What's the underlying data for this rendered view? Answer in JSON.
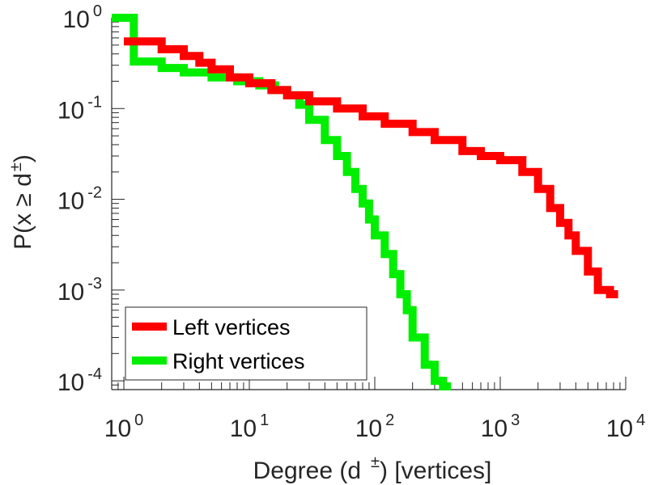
{
  "chart_data": {
    "type": "line",
    "subtype": "step-ccdf",
    "title": "",
    "xlabel": {
      "main": "Degree (d",
      "sup": "±",
      "rest": ") [vertices]"
    },
    "ylabel": {
      "main": "P(x ≥ d",
      "sup": "±",
      "rest": ")"
    },
    "xscale": "log",
    "yscale": "log",
    "xlim": [
      0.8,
      10000
    ],
    "ylim": [
      8e-05,
      1
    ],
    "x_ticks": [
      {
        "base": "10",
        "exp": "0",
        "value": 1
      },
      {
        "base": "10",
        "exp": "1",
        "value": 10
      },
      {
        "base": "10",
        "exp": "2",
        "value": 100
      },
      {
        "base": "10",
        "exp": "3",
        "value": 1000
      },
      {
        "base": "10",
        "exp": "4",
        "value": 10000
      }
    ],
    "y_ticks": [
      {
        "base": "10",
        "exp": "0",
        "value": 1
      },
      {
        "base": "10",
        "exp": "-1",
        "value": 0.1
      },
      {
        "base": "10",
        "exp": "-2",
        "value": 0.01
      },
      {
        "base": "10",
        "exp": "-3",
        "value": 0.001
      },
      {
        "base": "10",
        "exp": "-4",
        "value": 0.0001
      }
    ],
    "legend_position": "bottom-left",
    "series": [
      {
        "name": "Left vertices",
        "color": "#ff0000",
        "x": [
          1,
          2,
          3,
          4,
          5,
          7,
          10,
          15,
          20,
          30,
          50,
          80,
          120,
          200,
          300,
          500,
          700,
          1000,
          1500,
          2000,
          2500,
          3000,
          3500,
          4000,
          5000,
          6000,
          7500
        ],
        "y": [
          0.55,
          0.45,
          0.38,
          0.32,
          0.27,
          0.22,
          0.19,
          0.16,
          0.14,
          0.12,
          0.1,
          0.082,
          0.068,
          0.055,
          0.045,
          0.034,
          0.03,
          0.027,
          0.02,
          0.013,
          0.008,
          0.0055,
          0.004,
          0.0027,
          0.0016,
          0.001,
          0.0009
        ]
      },
      {
        "name": "Right vertices",
        "color": "#00ee00",
        "x": [
          0.8,
          1,
          1.2,
          2,
          3,
          5,
          8,
          12,
          16,
          20,
          25,
          30,
          40,
          50,
          60,
          70,
          80,
          90,
          100,
          120,
          140,
          160,
          180,
          200,
          250,
          300,
          350
        ],
        "y": [
          1,
          1,
          0.33,
          0.28,
          0.25,
          0.22,
          0.2,
          0.18,
          0.16,
          0.14,
          0.11,
          0.075,
          0.045,
          0.03,
          0.02,
          0.013,
          0.009,
          0.006,
          0.004,
          0.0025,
          0.0015,
          0.0009,
          0.0006,
          0.0003,
          0.00015,
          0.0001,
          8e-05
        ]
      }
    ]
  },
  "colors": {
    "axis": "#262626",
    "left": "#ff0000",
    "right": "#00ee00"
  }
}
